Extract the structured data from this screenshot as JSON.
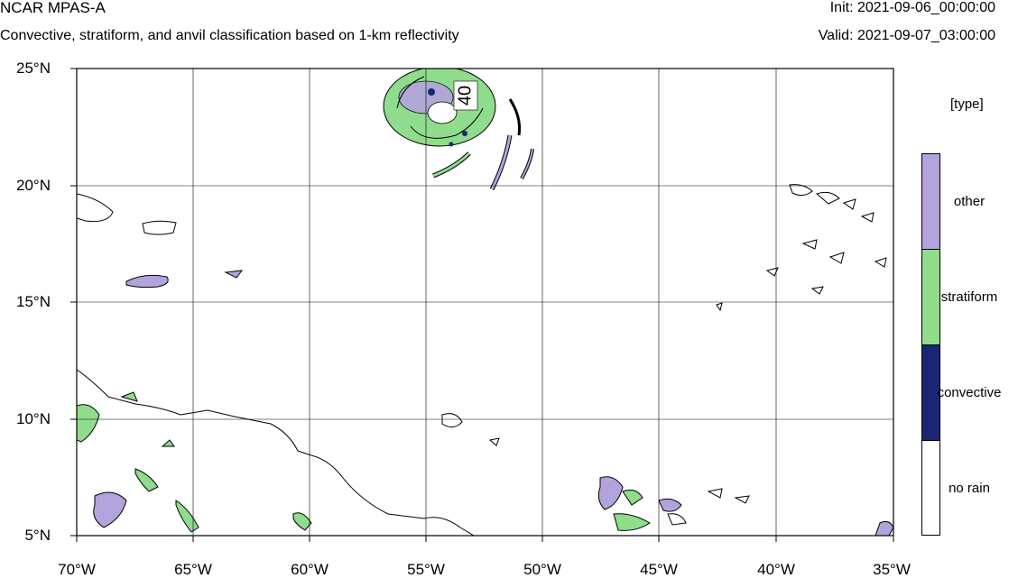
{
  "header": {
    "title": "NCAR MPAS-A",
    "subtitle": "Convective, stratiform, and anvil classification based on 1-km reflectivity",
    "init": "Init: 2021-09-06_00:00:00",
    "valid": "Valid: 2021-09-07_03:00:00"
  },
  "map": {
    "projection": "cylindrical-equidistant",
    "lon_range": [
      -70,
      -35
    ],
    "lat_range": [
      5,
      25
    ],
    "lat_ticks": [
      {
        "value": 25,
        "label": "25°N"
      },
      {
        "value": 20,
        "label": "20°N"
      },
      {
        "value": 15,
        "label": "15°N"
      },
      {
        "value": 10,
        "label": "10°N"
      },
      {
        "value": 5,
        "label": "5°N"
      }
    ],
    "lon_ticks": [
      {
        "value": -70,
        "label": "70°W"
      },
      {
        "value": -65,
        "label": "65°W"
      },
      {
        "value": -60,
        "label": "60°W"
      },
      {
        "value": -55,
        "label": "55°W"
      },
      {
        "value": -50,
        "label": "50°W"
      },
      {
        "value": -45,
        "label": "45°W"
      },
      {
        "value": -40,
        "label": "40°W"
      },
      {
        "value": -35,
        "label": "35°W"
      }
    ],
    "grid": true,
    "contour_label": "40",
    "features": [
      {
        "name": "hurricane-rainband-region",
        "lon": -53.5,
        "lat": 23.2
      },
      {
        "name": "south-american-coastline"
      },
      {
        "name": "scattered-convection-east",
        "lon": -38.5,
        "lat": 18.5
      },
      {
        "name": "itcz-convection-south",
        "lon": -45.5,
        "lat": 6.0
      }
    ]
  },
  "legend": {
    "title": "[type]",
    "position": "right",
    "categories": [
      {
        "label": "other",
        "color": "#b3a3dc"
      },
      {
        "label": "stratiform",
        "color": "#8fdc8c"
      },
      {
        "label": "convective",
        "color": "#1a2673"
      },
      {
        "label": "no rain",
        "color": "#ffffff"
      }
    ]
  },
  "colors": {
    "other": "#b3a3dc",
    "stratiform": "#8fdc8c",
    "convective": "#1a2673",
    "no_rain": "#ffffff",
    "grid": "#000000"
  }
}
